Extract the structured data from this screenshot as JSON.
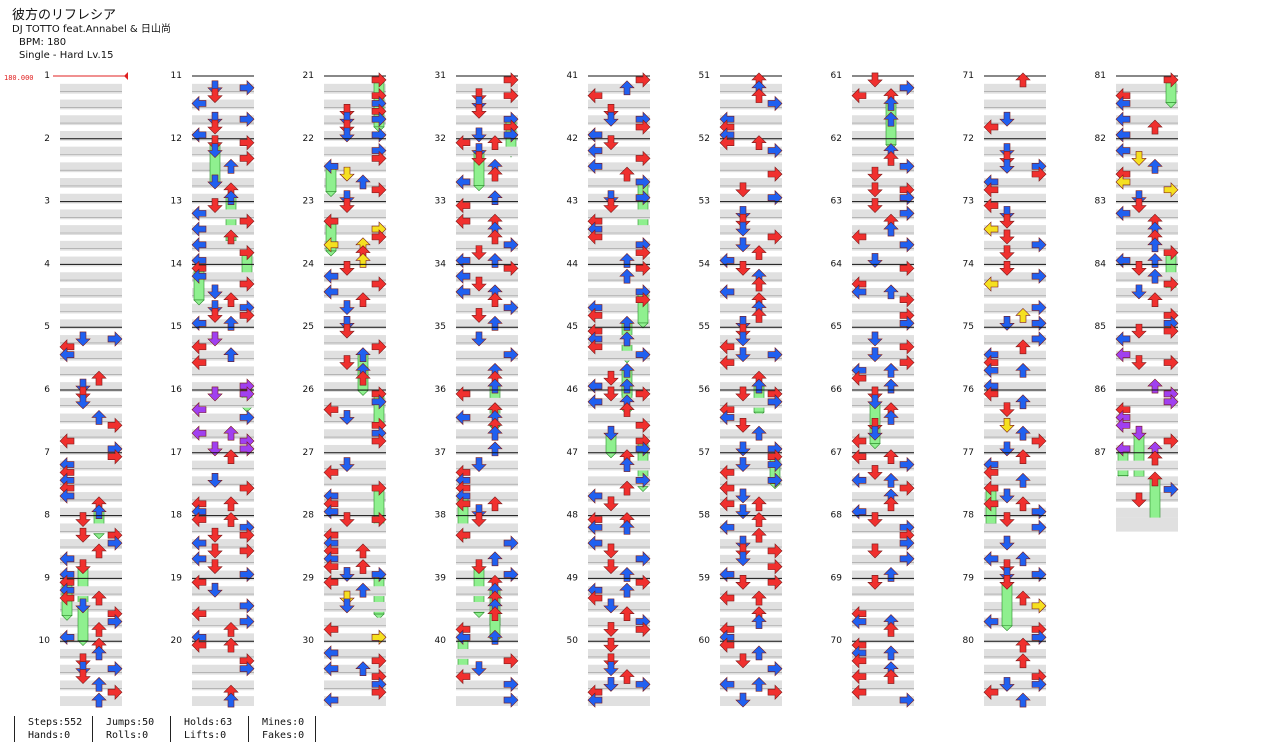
{
  "song": {
    "title": "彼方のリフレシア",
    "artist": "DJ TOTTO feat.Annabel & 日山尚",
    "bpm_label": "BPM: 180",
    "difficulty_label": "Single - Hard  Lv.15"
  },
  "bpm_marker": {
    "label": "180.000",
    "color": "#e02020"
  },
  "colors": {
    "red_arrow": "#f0302e",
    "blue_arrow": "#2060f0",
    "yellow_arrow": "#f5e020",
    "purple_arrow": "#a040f0",
    "hold_body": "#8ff08f",
    "lane_band": "#e0e0e0"
  },
  "measures": {
    "first": 1,
    "last": 87,
    "per_column": 10,
    "columns": 9
  },
  "stats": [
    {
      "top": "Steps:552",
      "bottom": "Hands:0"
    },
    {
      "top": "Jumps:50",
      "bottom": "Rolls:0"
    },
    {
      "top": "Holds:63",
      "bottom": "Lifts:0"
    },
    {
      "top": "Mines:0",
      "bottom": "Fakes:0"
    }
  ]
}
